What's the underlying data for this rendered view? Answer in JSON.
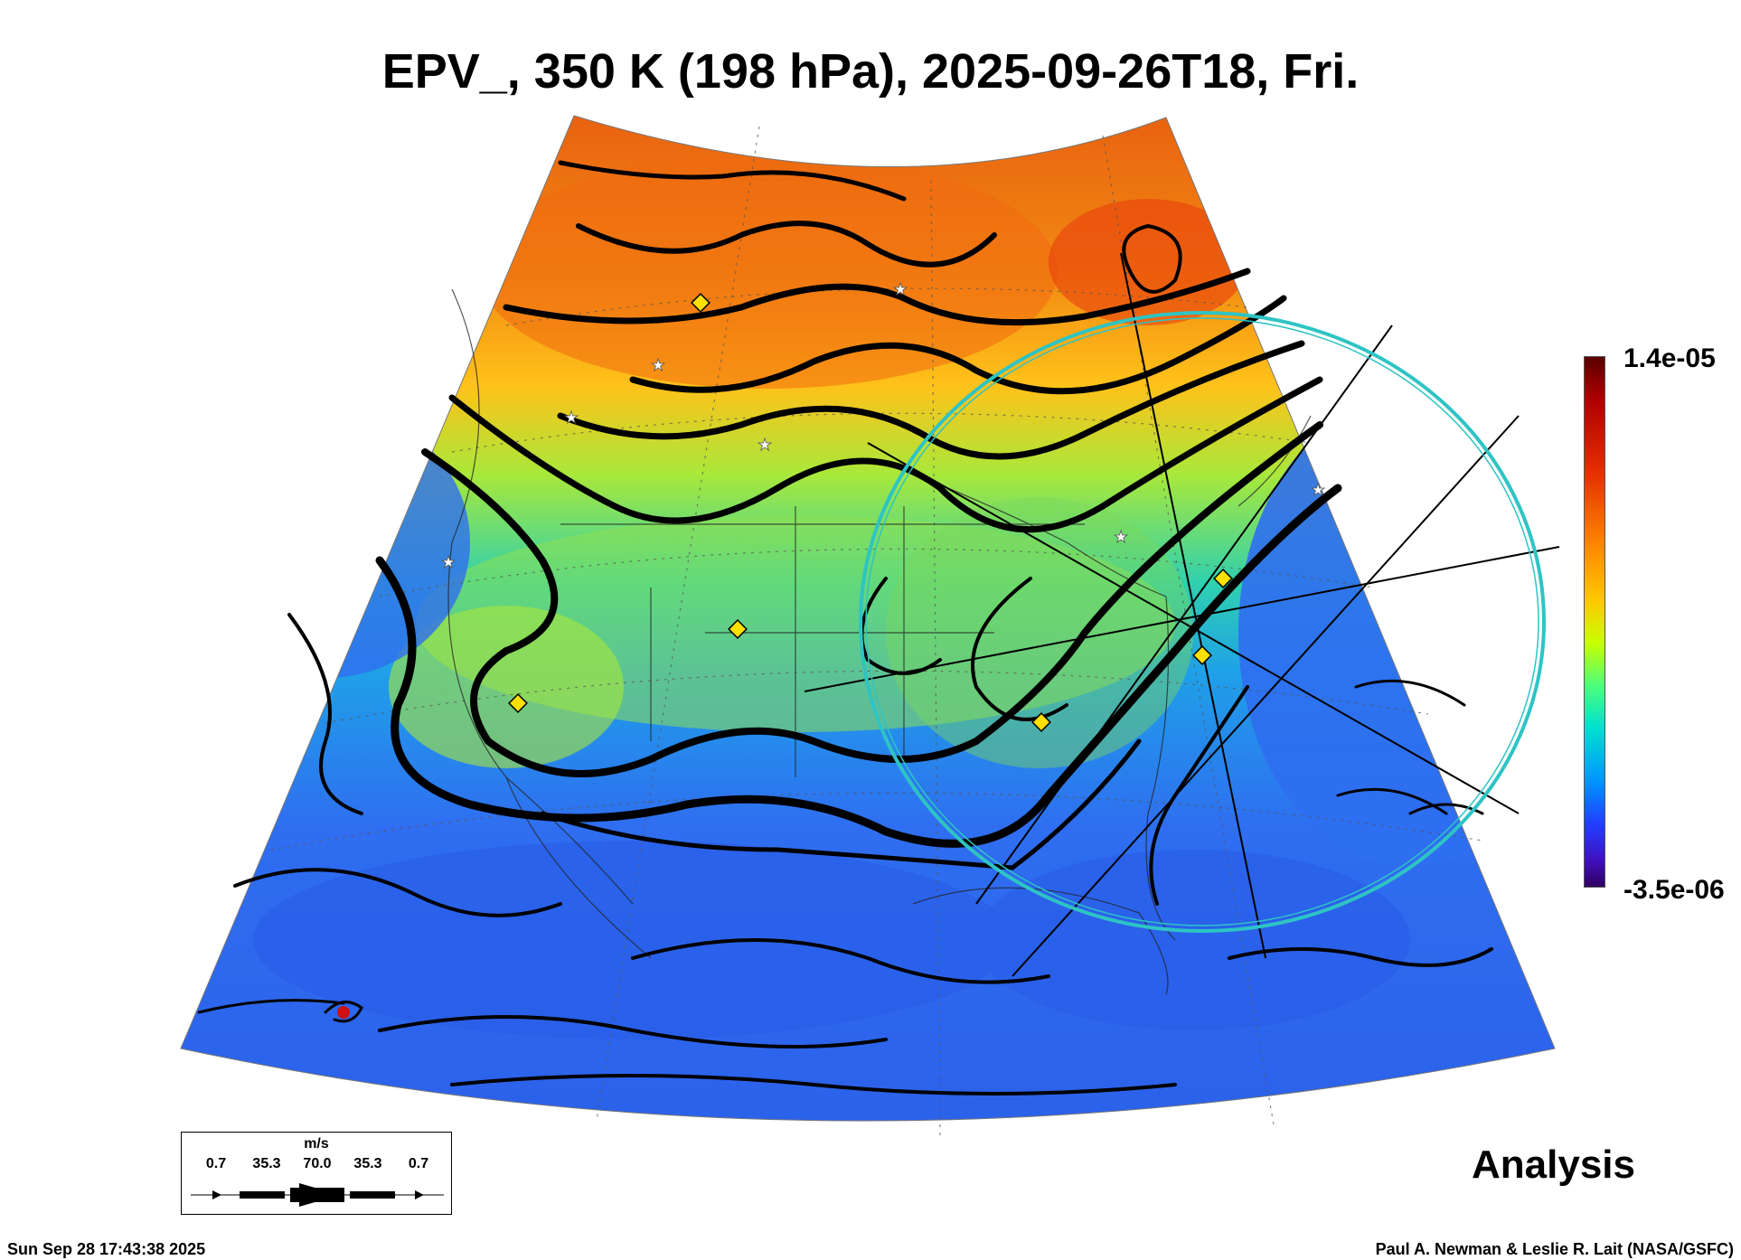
{
  "title": "EPV_, 350 K (198 hPa), 2025-09-26T18, Fri.",
  "colorbar": {
    "max_label": "1.4e-05",
    "min_label": "-3.5e-06",
    "colors": [
      "#5a0000",
      "#e53000",
      "#ff8a00",
      "#ffc800",
      "#c8ff00",
      "#4cff7a",
      "#00e0d0",
      "#0096ff",
      "#2040ff",
      "#300060"
    ]
  },
  "analysis_label": "Analysis",
  "footer": {
    "timestamp": "Sun Sep 28 17:43:38 2025",
    "credit": "Paul A. Newman & Leslie R. Lait (NASA/GSFC)"
  },
  "wind_scale": {
    "units": "m/s",
    "labels": [
      "0.7",
      "35.3",
      "70.0",
      "35.3",
      "0.7"
    ]
  },
  "map": {
    "field_colors": {
      "high": "#f07a10",
      "mid": "#9ae83a",
      "low": "#2f6ef0"
    },
    "range_ring_color": "#2ec4c4"
  }
}
